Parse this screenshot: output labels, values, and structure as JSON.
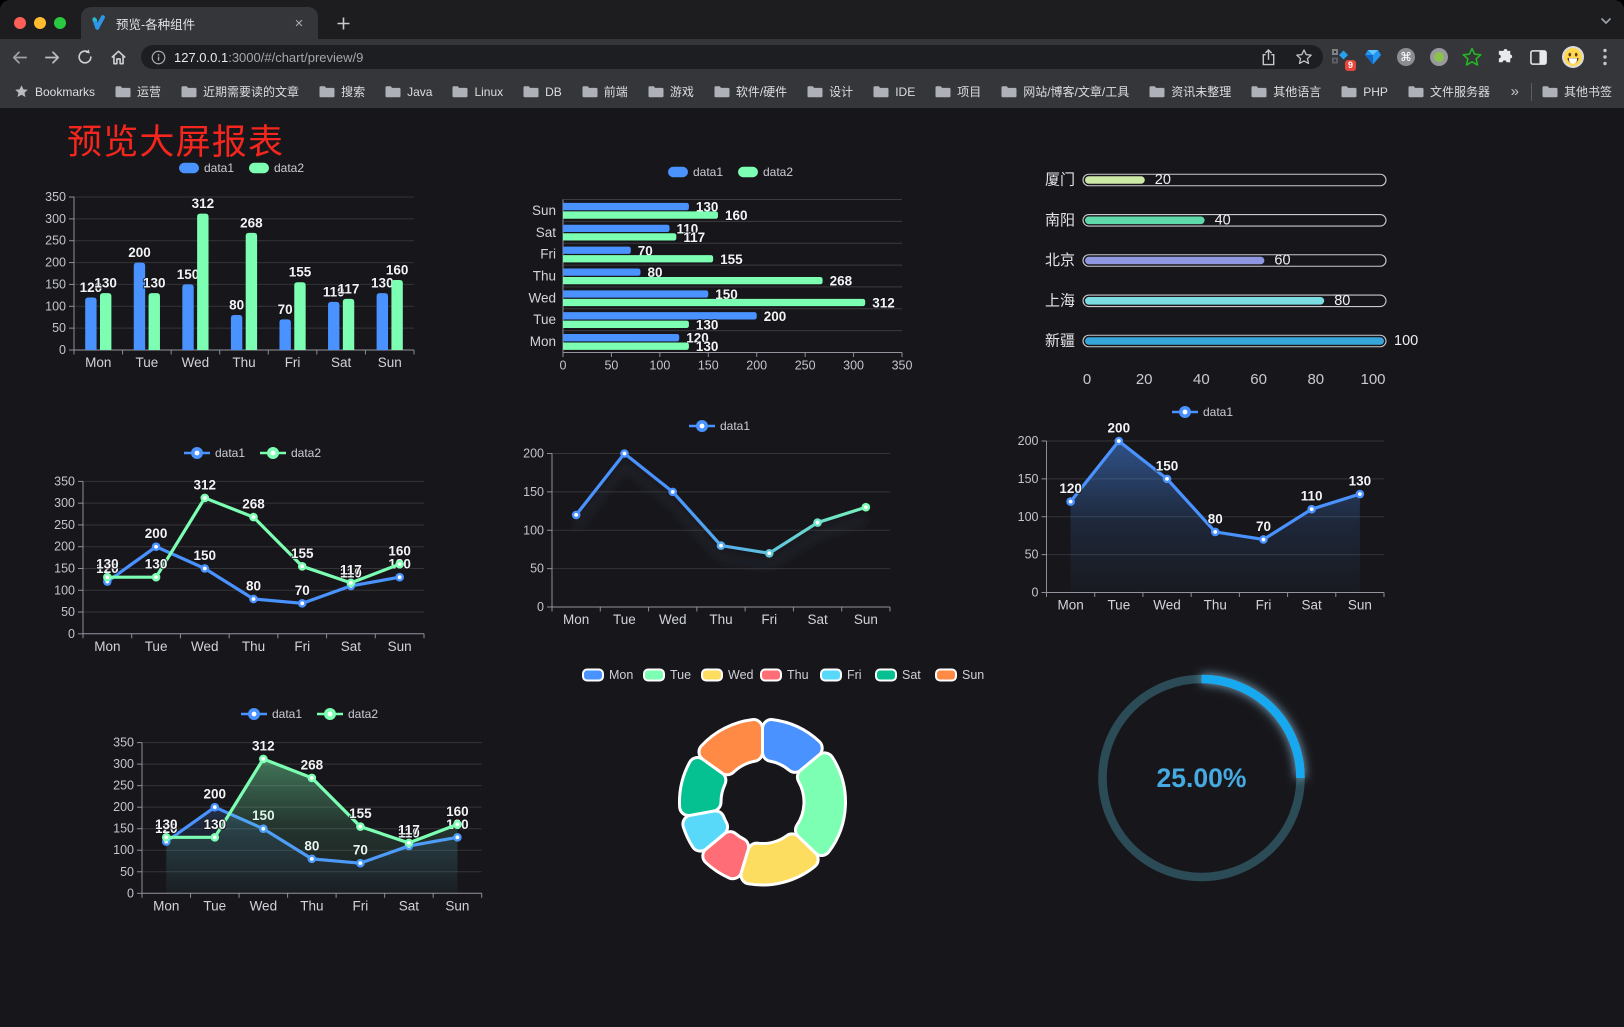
{
  "browser": {
    "tab": {
      "title": "预览-各种组件"
    },
    "url": {
      "host": "127.0.0.1",
      "rest": ":3000/#/chart/preview/9"
    },
    "bookmarks_label": "Bookmarks",
    "bookmarks": [
      "运营",
      "近期需要读的文章",
      "搜索",
      "Java",
      "Linux",
      "DB",
      "前端",
      "游戏",
      "软件/硬件",
      "设计",
      "IDE",
      "项目",
      "网站/博客/文章/工具",
      "资讯未整理",
      "其他语言",
      "PHP",
      "文件服务器"
    ],
    "overflow_chevron": "»",
    "other_bookmarks": "其他书签",
    "extension_badge": "9",
    "tab_close_glyph": "×",
    "new_tab_glyph": "+"
  },
  "page": {
    "title": "预览大屏报表",
    "title_color": "#f5261d",
    "background": "#17171b"
  },
  "chart_data": [
    {
      "id": "bar-vertical",
      "type": "bar",
      "categories": [
        "Mon",
        "Tue",
        "Wed",
        "Thu",
        "Fri",
        "Sat",
        "Sun"
      ],
      "series": [
        {
          "name": "data1",
          "color": "#4992ff",
          "values": [
            120,
            200,
            150,
            80,
            70,
            110,
            130
          ]
        },
        {
          "name": "data2",
          "color": "#7cffb2",
          "values": [
            130,
            130,
            312,
            268,
            155,
            117,
            160
          ]
        }
      ],
      "ylim": [
        0,
        350
      ],
      "ytick_step": 50,
      "legend_position": "top",
      "grid": true,
      "value_labels": true
    },
    {
      "id": "bar-horizontal",
      "type": "bar-horizontal",
      "categories_top_to_bottom": [
        "Sun",
        "Sat",
        "Fri",
        "Thu",
        "Wed",
        "Tue",
        "Mon"
      ],
      "series": [
        {
          "name": "data1",
          "color": "#4992ff",
          "values_by_category": {
            "Mon": 120,
            "Tue": 200,
            "Wed": 150,
            "Thu": 80,
            "Fri": 70,
            "Sat": 110,
            "Sun": 130
          }
        },
        {
          "name": "data2",
          "color": "#7cffb2",
          "values_by_category": {
            "Mon": 130,
            "Tue": 130,
            "Wed": 312,
            "Thu": 268,
            "Fri": 155,
            "Sat": 117,
            "Sun": 160
          }
        }
      ],
      "xlim": [
        0,
        350
      ],
      "xtick_step": 50,
      "legend_position": "top",
      "value_labels": true
    },
    {
      "id": "progress-bars",
      "type": "progress",
      "rows": [
        {
          "label": "厦门",
          "value": 20,
          "color": "#cde9a6"
        },
        {
          "label": "南阳",
          "value": 40,
          "color": "#5fd9aa"
        },
        {
          "label": "北京",
          "value": 60,
          "color": "#8f97e0"
        },
        {
          "label": "上海",
          "value": 80,
          "color": "#7bdce2"
        },
        {
          "label": "新疆",
          "value": 100,
          "color": "#36a5d9"
        }
      ],
      "xlim": [
        0,
        100
      ],
      "xticks": [
        0,
        20,
        40,
        60,
        80,
        100
      ]
    },
    {
      "id": "line-basic",
      "type": "line",
      "categories": [
        "Mon",
        "Tue",
        "Wed",
        "Thu",
        "Fri",
        "Sat",
        "Sun"
      ],
      "series": [
        {
          "name": "data1",
          "color": "#4992ff",
          "values": [
            120,
            200,
            150,
            80,
            70,
            110,
            130
          ]
        },
        {
          "name": "data2",
          "color": "#7cffb2",
          "values": [
            130,
            130,
            312,
            268,
            155,
            117,
            160
          ]
        }
      ],
      "ylim": [
        0,
        350
      ],
      "ytick_step": 50,
      "legend_position": "top",
      "value_labels": true
    },
    {
      "id": "line-gradient",
      "type": "line",
      "categories": [
        "Mon",
        "Tue",
        "Wed",
        "Thu",
        "Fri",
        "Sat",
        "Sun"
      ],
      "series": [
        {
          "name": "data1",
          "color": "#4992ff",
          "gradient": [
            "#4992ff",
            "#7cffb2"
          ],
          "values": [
            120,
            200,
            150,
            80,
            70,
            110,
            130
          ],
          "shadow": true
        }
      ],
      "ylim": [
        0,
        200
      ],
      "ytick_step": 50,
      "legend_position": "top",
      "value_labels": false
    },
    {
      "id": "area-single",
      "type": "line",
      "categories": [
        "Mon",
        "Tue",
        "Wed",
        "Thu",
        "Fri",
        "Sat",
        "Sun"
      ],
      "series": [
        {
          "name": "data1",
          "color": "#4992ff",
          "values": [
            120,
            200,
            150,
            80,
            70,
            110,
            130
          ],
          "area": true
        }
      ],
      "ylim": [
        0,
        200
      ],
      "ytick_step": 50,
      "legend_position": "top",
      "value_labels": true
    },
    {
      "id": "area-double",
      "type": "line",
      "categories": [
        "Mon",
        "Tue",
        "Wed",
        "Thu",
        "Fri",
        "Sat",
        "Sun"
      ],
      "series": [
        {
          "name": "data1",
          "color": "#4992ff",
          "values": [
            120,
            200,
            150,
            80,
            70,
            110,
            130
          ],
          "area": true
        },
        {
          "name": "data2",
          "color": "#7cffb2",
          "values": [
            130,
            130,
            312,
            268,
            155,
            117,
            160
          ],
          "area": true
        }
      ],
      "ylim": [
        0,
        350
      ],
      "ytick_step": 50,
      "legend_position": "top",
      "value_labels": true
    },
    {
      "id": "donut",
      "type": "pie",
      "items": [
        {
          "name": "Mon",
          "value": 120,
          "color": "#4992ff"
        },
        {
          "name": "Tue",
          "value": 200,
          "color": "#7cffb2"
        },
        {
          "name": "Wed",
          "value": 150,
          "color": "#fddd60"
        },
        {
          "name": "Thu",
          "value": 80,
          "color": "#ff6e76"
        },
        {
          "name": "Fri",
          "value": 70,
          "color": "#58d9f9"
        },
        {
          "name": "Sat",
          "value": 110,
          "color": "#05c091"
        },
        {
          "name": "Sun",
          "value": 130,
          "color": "#ff8a45"
        }
      ],
      "legend_position": "top",
      "border_color": "#ffffff"
    },
    {
      "id": "gauge",
      "type": "gauge",
      "value": 25,
      "max": 100,
      "display": "25.00%",
      "color": "#18a9f0",
      "track_color": "#2b4c57",
      "text_color": "#46a9e2"
    }
  ]
}
